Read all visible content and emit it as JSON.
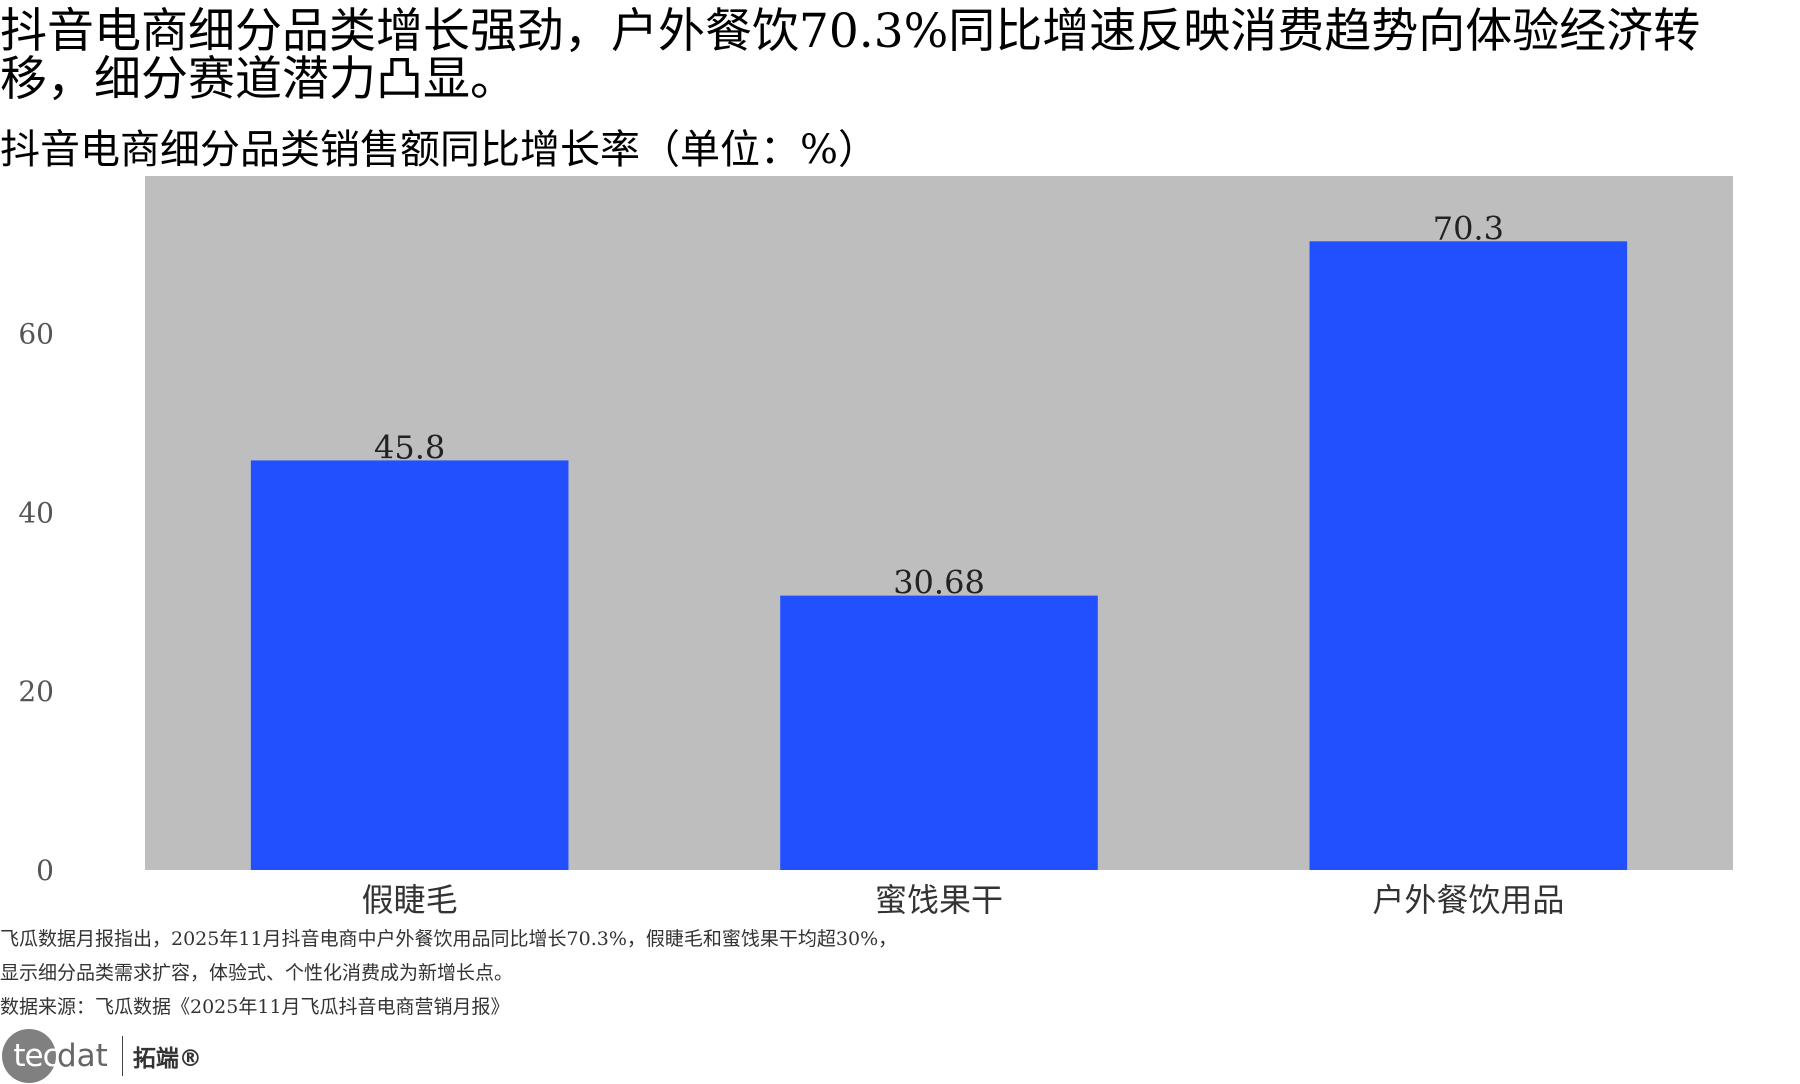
{
  "headline": "抖音电商细分品类增长强劲，户外餐饮70.3%同比增速反映消费趋势向体验经济转移，细分赛道潜力凸显。",
  "subtitle": "抖音电商细分品类销售额同比增长率（单位：%）",
  "chart_data": {
    "type": "bar",
    "categories": [
      "假睫毛",
      "蜜饯果干",
      "户外餐饮用品"
    ],
    "values": [
      45.8,
      30.68,
      70.3
    ],
    "data_labels": [
      "45.8",
      "30.68",
      "70.3"
    ],
    "yticks": [
      0,
      20,
      40,
      60
    ],
    "ylim": [
      0,
      77.6
    ],
    "grid": false,
    "bar_color": "#2350FF",
    "plot_background": "#BEBEBE",
    "title": "",
    "xlabel": "",
    "ylabel": ""
  },
  "footnotes": {
    "line1": "飞瓜数据月报指出，2025年11月抖音电商中户外餐饮用品同比增长70.3%，假睫毛和蜜饯果干均超30%，",
    "line2": "显示细分品类需求扩容，体验式、个性化消费成为新增长点。",
    "source": "数据来源：飞瓜数据《2025年11月飞瓜抖音电商营销月报》"
  },
  "logo": {
    "text_tec": "tec",
    "text_dat": "dat",
    "text_cn": "拓端®"
  }
}
